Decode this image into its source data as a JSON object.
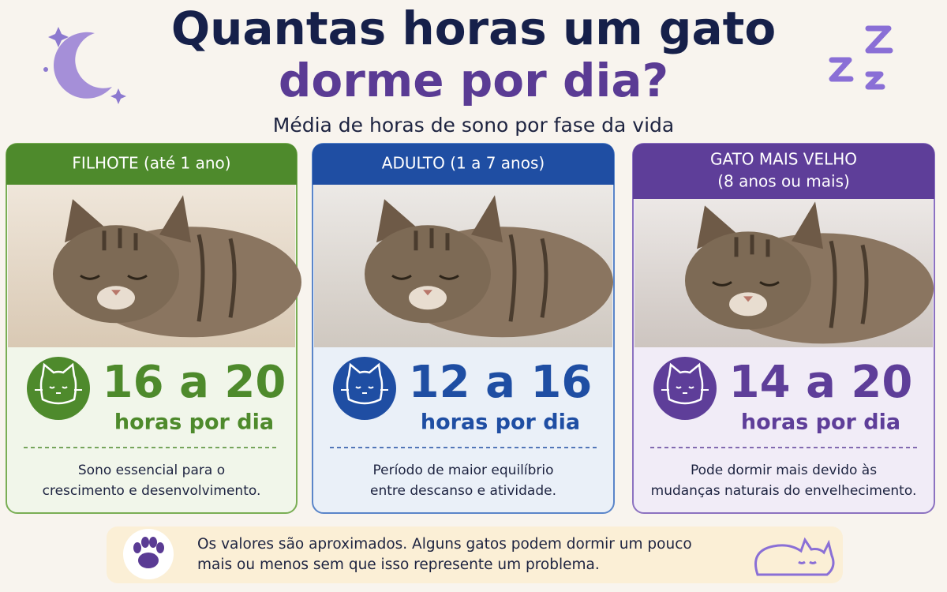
{
  "header": {
    "title_line1": "Quantas horas um gato",
    "title_line2": "dorme por dia?",
    "subtitle": "Média de horas de sono por fase da vida"
  },
  "cards": [
    {
      "label": [
        "FILHOTE (até 1 ano)"
      ],
      "hours": "16 a 20",
      "unit": "horas por dia",
      "description": [
        "Sono essencial para o",
        "crescimento e desenvolvimento."
      ]
    },
    {
      "label": [
        "ADULTO (1 a 7 anos)"
      ],
      "hours": "12 a 16",
      "unit": "horas por dia",
      "description": [
        "Período de maior equilíbrio",
        "entre descanso e atividade."
      ]
    },
    {
      "label": [
        "GATO MAIS VELHO",
        "(8 anos ou mais)"
      ],
      "hours": "14 a 20",
      "unit": "horas por dia",
      "description": [
        "Pode dormir mais devido às",
        "mudanças naturais do envelhecimento."
      ]
    }
  ],
  "footer": {
    "note": [
      "Os valores são aproximados. Alguns gatos podem dormir um pouco",
      "mais ou menos sem que isso represente um problema."
    ]
  }
}
